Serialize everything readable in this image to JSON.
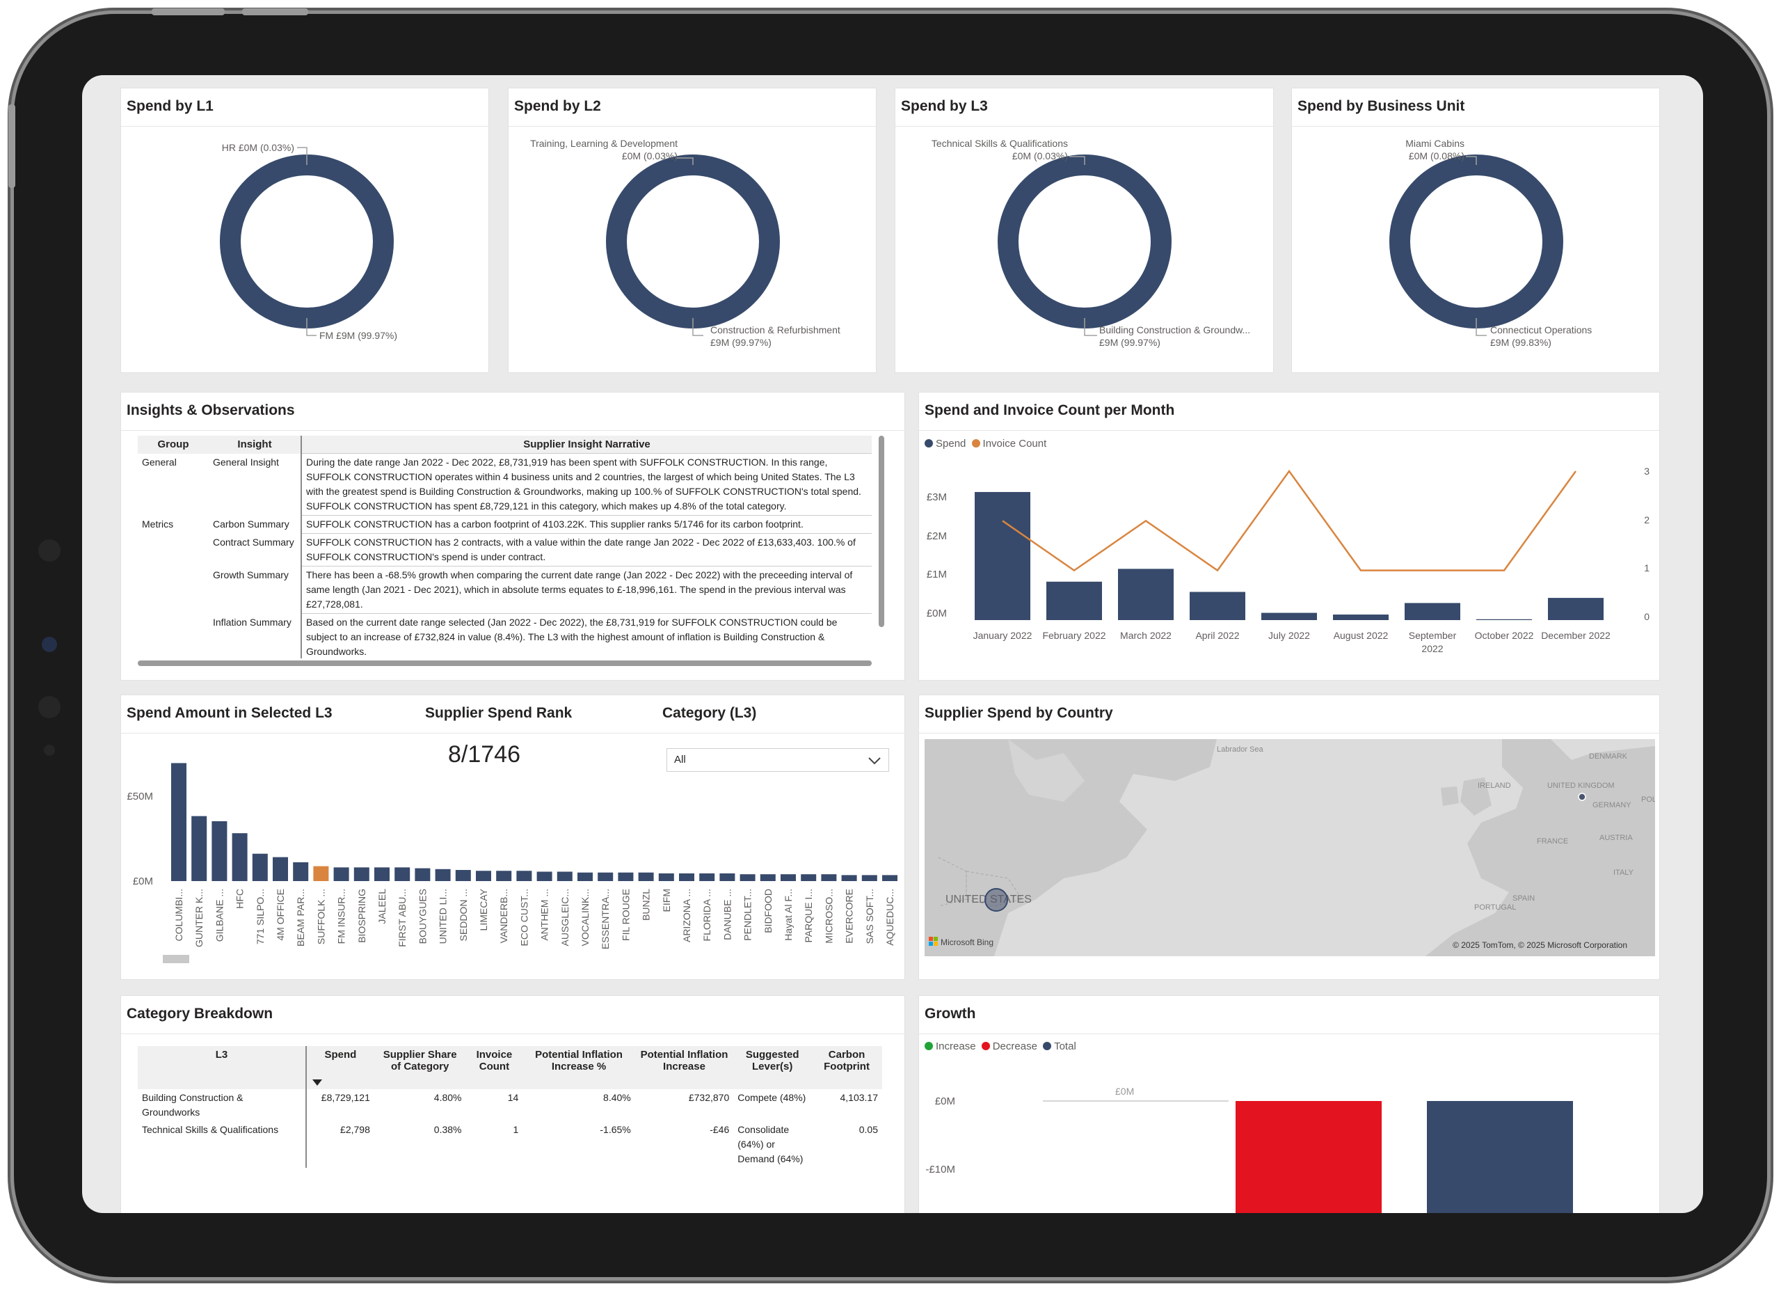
{
  "colors": {
    "navy": "#374a6b",
    "orange": "#d9853f",
    "red": "#e3131f",
    "green": "#21a336"
  },
  "donuts": [
    {
      "title": "Spend by L1",
      "small_label": "HR £0M (0.03%)",
      "large_label": "FM £9M (99.97%)",
      "large_value": 99.97
    },
    {
      "title": "Spend by L2",
      "small_label_1": "Training, Learning & Development",
      "small_label_2": "£0M (0.03%)",
      "large_label_1": "Construction & Refurbishment",
      "large_label_2": "£9M (99.97%)",
      "large_value": 99.97
    },
    {
      "title": "Spend by L3",
      "small_label_1": "Technical Skills & Qualifications",
      "small_label_2": "£0M (0.03%)",
      "large_label_1": "Building Construction & Groundw...",
      "large_label_2": "£9M (99.97%)",
      "large_value": 99.97
    },
    {
      "title": "Spend by Business Unit",
      "small_label_1": "Miami Cabins",
      "small_label_2": "£0M (0.08%)",
      "large_label_1": "Connecticut Operations",
      "large_label_2": "£9M (99.83%)",
      "large_value": 99.83
    }
  ],
  "insights": {
    "title": "Insights & Observations",
    "headers": [
      "Group",
      "Insight",
      "Supplier Insight Narrative"
    ],
    "rows": [
      {
        "group": "General",
        "insight": "General Insight",
        "narrative": "During the date range Jan 2022 - Dec 2022, £8,731,919 has been spent with SUFFOLK CONSTRUCTION. In this range, SUFFOLK CONSTRUCTION operates within 4 business units and 2 countries, the largest of which being United States. The L3 with the greatest spend is Building Construction & Groundworks, making up 100.% of SUFFOLK CONSTRUCTION's total spend. SUFFOLK CONSTRUCTION has spent £8,729,121 in this category, which makes up 4.8% of the total category."
      },
      {
        "group": "Metrics",
        "insight": "Carbon Summary",
        "narrative": "SUFFOLK CONSTRUCTION has a carbon footprint of 4103.22K. This supplier ranks 5/1746 for its carbon footprint."
      },
      {
        "group": "",
        "insight": "Contract Summary",
        "narrative": "SUFFOLK CONSTRUCTION has 2 contracts, with a value within the date range Jan 2022 - Dec 2022 of £13,633,403. 100.% of SUFFOLK CONSTRUCTION's spend is under contract."
      },
      {
        "group": "",
        "insight": "Growth Summary",
        "narrative": "There has been a -68.5% growth when comparing the current date range (Jan 2022 - Dec 2022) with the preceeding interval of same length (Jan 2021 - Dec 2021), which in absolute terms equates to £-18,996,161. The spend in the previous interval was £27,728,081."
      },
      {
        "group": "",
        "insight": "Inflation Summary",
        "narrative": "Based on the current date range selected (Jan 2022 - Dec 2022), the £8,731,919 for SUFFOLK CONSTRUCTION could be subject to an increase of £732,824 in value (8.4%). The L3 with the highest amount of inflation is Building Construction & Groundworks."
      }
    ]
  },
  "spend_invoice": {
    "title": "Spend and Invoice Count per Month",
    "legend_spend": "Spend",
    "legend_invoice": "Invoice Count",
    "y_left_ticks": [
      "£3M",
      "£2M",
      "£1M",
      "£0M"
    ],
    "y_right_ticks": [
      "3",
      "2",
      "1",
      "0"
    ]
  },
  "rank": {
    "title_spend": "Spend Amount in Selected L3",
    "title_rank": "Supplier Spend Rank",
    "title_category": "Category (L3)",
    "rank_value": "8/1746",
    "category_selected": "All",
    "y_ticks": [
      "£50M",
      "£0M"
    ]
  },
  "map": {
    "title": "Supplier Spend by Country",
    "labels": {
      "labrador": "Labrador Sea",
      "uk": "UNITED KINGDOM",
      "ireland": "IRELAND",
      "denmark": "DENMARK",
      "germany": "GERMANY",
      "pol": "POL",
      "france": "FRANCE",
      "austria": "AUSTRIA",
      "italy": "ITALY",
      "spain": "SPAIN",
      "portugal": "PORTUGAL",
      "us": "UNITED STATES"
    },
    "bing": "Microsoft Bing",
    "copyright": "© 2025 TomTom, © 2025 Microsoft Corporation"
  },
  "category_breakdown": {
    "title": "Category Breakdown",
    "headers": [
      "L3",
      "Spend",
      "Supplier Share of Category",
      "Invoice Count",
      "Potential Inflation Increase %",
      "Potential Inflation Increase",
      "Suggested Lever(s)",
      "Carbon Footprint"
    ],
    "rows": [
      [
        "Building Construction & Groundworks",
        "£8,729,121",
        "4.80%",
        "14",
        "8.40%",
        "£732,870",
        "Compete (48%)",
        "4,103.17"
      ],
      [
        "Technical Skills & Qualifications",
        "£2,798",
        "0.38%",
        "1",
        "-1.65%",
        "-£46",
        "Consolidate (64%) or Demand (64%)",
        "0.05"
      ]
    ]
  },
  "growth": {
    "title": "Growth",
    "legend": [
      "Increase",
      "Decrease",
      "Total"
    ],
    "y_ticks": [
      "£0M",
      "-£10M"
    ],
    "bar_label": "£0M"
  },
  "chart_data": [
    {
      "type": "bar",
      "title": "Spend and Invoice Count per Month",
      "categories": [
        "January 2022",
        "February 2022",
        "March 2022",
        "April 2022",
        "July 2022",
        "August 2022",
        "September 2022",
        "October 2022",
        "December 2022"
      ],
      "series": [
        {
          "name": "Spend",
          "values": [
            3.0,
            0.9,
            1.2,
            0.66,
            0.17,
            0.13,
            0.4,
            0.02,
            0.52
          ]
        },
        {
          "name": "Invoice Count",
          "values": [
            2,
            1,
            2,
            1,
            3,
            1,
            1,
            1,
            3
          ]
        }
      ],
      "ylim": [
        0,
        3.7
      ],
      "y2lim": [
        0,
        3
      ]
    },
    {
      "type": "bar",
      "title": "Spend Amount in Selected L3",
      "categories": [
        "COLUMBI...",
        "GUNTER K...",
        "GILBANE ...",
        "HFC",
        "771 SILPO...",
        "4M OFFICE",
        "BEAM PAR...",
        "SUFFOLK ...",
        "FM INSUR...",
        "BIOSPRING",
        "JALEEL",
        "FIRST ABU...",
        "BOUYGUES",
        "UNITED LI...",
        "SEDDON ...",
        "LIMECAY",
        "VANDERB...",
        "ECO CUST...",
        "ANTHEM ...",
        "AUSGLEIC...",
        "VOCALINK...",
        "ESSENTRA...",
        "FIL ROUGE",
        "BUNZL",
        "EIFM",
        "ARIZONA ...",
        "FLORIDA ...",
        "DANUBE ...",
        "PENDLET...",
        "BIDFOOD",
        "Hayat Al F...",
        "PARQUE I...",
        "MICROSO...",
        "EVERCORE",
        "SAS SOFT...",
        "AQUEDUC..."
      ],
      "values": [
        69,
        38,
        35,
        28,
        16,
        14,
        11,
        8.7,
        8,
        8,
        8,
        8,
        7.5,
        7,
        6.5,
        6,
        6,
        6,
        5.5,
        5.5,
        5,
        5,
        5,
        5,
        4.5,
        4.5,
        4.5,
        4.5,
        4,
        4,
        4,
        4,
        4,
        3.5,
        3.5,
        3.5
      ],
      "highlight": "SUFFOLK ...",
      "y_ticks": [
        "£50M",
        "£0M"
      ]
    },
    {
      "type": "bar",
      "title": "Growth",
      "series": [
        {
          "name": "Decrease",
          "value": -19
        },
        {
          "name": "Total",
          "value": -19
        }
      ],
      "y_ticks": [
        "£0M",
        "-£10M"
      ]
    }
  ]
}
